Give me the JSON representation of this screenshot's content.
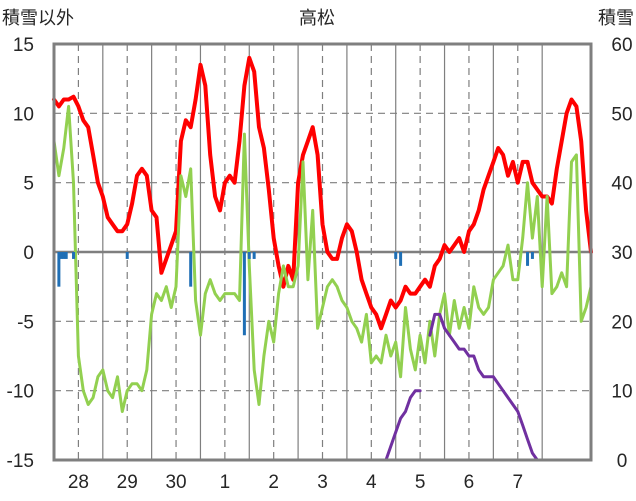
{
  "chart_data": {
    "type": "line",
    "title": "高松",
    "ylabel_left": "積雪以外",
    "ylabel_right": "積雪",
    "ylim_left": [
      -15,
      15
    ],
    "yticks_left": [
      15,
      10,
      5,
      0,
      -5,
      -10,
      -15
    ],
    "ylim_right": [
      0,
      60
    ],
    "yticks_right": [
      60,
      50,
      40,
      30,
      20,
      10,
      0
    ],
    "x_range": [
      27.5,
      38.5
    ],
    "x_ticks": [
      28,
      29,
      30,
      31,
      32,
      33,
      34,
      35,
      36,
      37
    ],
    "x_tick_labels": [
      "28",
      "29",
      "30",
      "1",
      "2",
      "3",
      "4",
      "5",
      "6",
      "7"
    ],
    "grid": true,
    "colors": {
      "temperature": "#ff0000",
      "second_series": "#92d050",
      "precipitation": "#1f6fb5",
      "snow_depth": "#7030a0",
      "frame": "#7f7f7f",
      "grid": "#7f7f7f"
    },
    "series": [
      {
        "key": "temperature",
        "axis": "left",
        "points": [
          [
            27.5,
            11.0
          ],
          [
            27.6,
            10.5
          ],
          [
            27.7,
            11.0
          ],
          [
            27.8,
            11.0
          ],
          [
            27.9,
            11.2
          ],
          [
            28.0,
            10.5
          ],
          [
            28.1,
            9.5
          ],
          [
            28.2,
            9.0
          ],
          [
            28.3,
            7.0
          ],
          [
            28.4,
            5.0
          ],
          [
            28.5,
            4.0
          ],
          [
            28.6,
            2.5
          ],
          [
            28.7,
            2.0
          ],
          [
            28.8,
            1.5
          ],
          [
            28.9,
            1.5
          ],
          [
            29.0,
            2.0
          ],
          [
            29.1,
            3.5
          ],
          [
            29.2,
            5.5
          ],
          [
            29.3,
            6.0
          ],
          [
            29.4,
            5.5
          ],
          [
            29.5,
            3.0
          ],
          [
            29.6,
            2.5
          ],
          [
            29.7,
            -1.5
          ],
          [
            29.8,
            -0.5
          ],
          [
            29.9,
            0.5
          ],
          [
            30.0,
            1.5
          ],
          [
            30.1,
            8.0
          ],
          [
            30.2,
            9.5
          ],
          [
            30.3,
            9.0
          ],
          [
            30.4,
            11.0
          ],
          [
            30.5,
            13.5
          ],
          [
            30.6,
            12.0
          ],
          [
            30.7,
            7.0
          ],
          [
            30.8,
            4.0
          ],
          [
            30.9,
            3.0
          ],
          [
            31.0,
            5.0
          ],
          [
            31.1,
            5.5
          ],
          [
            31.2,
            5.0
          ],
          [
            31.3,
            8.0
          ],
          [
            31.4,
            12.0
          ],
          [
            31.5,
            14.0
          ],
          [
            31.6,
            13.0
          ],
          [
            31.7,
            9.0
          ],
          [
            31.8,
            7.5
          ],
          [
            31.9,
            4.5
          ],
          [
            32.0,
            1.0
          ],
          [
            32.1,
            -1.0
          ],
          [
            32.2,
            -2.5
          ],
          [
            32.3,
            -1.0
          ],
          [
            32.4,
            -2.0
          ],
          [
            32.5,
            5.0
          ],
          [
            32.6,
            7.0
          ],
          [
            32.7,
            8.0
          ],
          [
            32.8,
            9.0
          ],
          [
            32.9,
            7.0
          ],
          [
            33.0,
            2.0
          ],
          [
            33.1,
            0.0
          ],
          [
            33.2,
            -0.5
          ],
          [
            33.3,
            -0.5
          ],
          [
            33.4,
            1.0
          ],
          [
            33.5,
            2.0
          ],
          [
            33.6,
            1.5
          ],
          [
            33.7,
            0.0
          ],
          [
            33.8,
            -2.0
          ],
          [
            33.9,
            -3.0
          ],
          [
            34.0,
            -4.0
          ],
          [
            34.1,
            -4.5
          ],
          [
            34.2,
            -5.5
          ],
          [
            34.3,
            -4.5
          ],
          [
            34.4,
            -3.5
          ],
          [
            34.5,
            -4.0
          ],
          [
            34.6,
            -3.5
          ],
          [
            34.7,
            -2.5
          ],
          [
            34.8,
            -3.0
          ],
          [
            34.9,
            -3.0
          ],
          [
            35.0,
            -2.5
          ],
          [
            35.1,
            -2.0
          ],
          [
            35.2,
            -2.5
          ],
          [
            35.3,
            -1.0
          ],
          [
            35.4,
            -0.5
          ],
          [
            35.5,
            0.5
          ],
          [
            35.6,
            0.0
          ],
          [
            35.7,
            0.5
          ],
          [
            35.8,
            1.0
          ],
          [
            35.9,
            0.0
          ],
          [
            36.0,
            1.5
          ],
          [
            36.1,
            2.0
          ],
          [
            36.2,
            3.0
          ],
          [
            36.3,
            4.5
          ],
          [
            36.4,
            5.5
          ],
          [
            36.5,
            6.5
          ],
          [
            36.6,
            7.5
          ],
          [
            36.7,
            7.0
          ],
          [
            36.8,
            5.5
          ],
          [
            36.9,
            6.5
          ],
          [
            37.0,
            5.0
          ],
          [
            37.1,
            6.5
          ],
          [
            37.2,
            6.5
          ],
          [
            37.3,
            5.0
          ],
          [
            37.4,
            4.5
          ],
          [
            37.5,
            4.0
          ],
          [
            37.6,
            4.0
          ],
          [
            37.7,
            3.5
          ],
          [
            37.8,
            6.0
          ],
          [
            37.9,
            8.0
          ],
          [
            38.0,
            10.0
          ],
          [
            38.1,
            11.0
          ],
          [
            38.2,
            10.5
          ],
          [
            38.3,
            8.0
          ],
          [
            38.4,
            3.0
          ],
          [
            38.5,
            0.0
          ]
        ]
      },
      {
        "key": "second_series",
        "axis": "left",
        "points": [
          [
            27.5,
            8.0
          ],
          [
            27.6,
            5.5
          ],
          [
            27.7,
            7.5
          ],
          [
            27.8,
            10.5
          ],
          [
            27.9,
            5.0
          ],
          [
            28.0,
            -7.5
          ],
          [
            28.1,
            -10.0
          ],
          [
            28.2,
            -11.0
          ],
          [
            28.3,
            -10.5
          ],
          [
            28.4,
            -9.0
          ],
          [
            28.5,
            -8.5
          ],
          [
            28.6,
            -10.0
          ],
          [
            28.7,
            -10.5
          ],
          [
            28.8,
            -9.0
          ],
          [
            28.9,
            -11.5
          ],
          [
            29.0,
            -10.0
          ],
          [
            29.1,
            -9.5
          ],
          [
            29.2,
            -9.5
          ],
          [
            29.3,
            -10.0
          ],
          [
            29.4,
            -8.5
          ],
          [
            29.5,
            -4.5
          ],
          [
            29.6,
            -3.0
          ],
          [
            29.7,
            -3.5
          ],
          [
            29.8,
            -2.5
          ],
          [
            29.9,
            -4.0
          ],
          [
            30.0,
            -2.5
          ],
          [
            30.1,
            5.5
          ],
          [
            30.2,
            4.0
          ],
          [
            30.3,
            6.0
          ],
          [
            30.4,
            -3.5
          ],
          [
            30.5,
            -6.0
          ],
          [
            30.6,
            -3.0
          ],
          [
            30.7,
            -2.0
          ],
          [
            30.8,
            -3.0
          ],
          [
            30.9,
            -3.5
          ],
          [
            31.0,
            -3.0
          ],
          [
            31.1,
            -3.0
          ],
          [
            31.2,
            -3.0
          ],
          [
            31.3,
            -3.5
          ],
          [
            31.4,
            8.5
          ],
          [
            31.5,
            -1.0
          ],
          [
            31.6,
            -8.5
          ],
          [
            31.7,
            -11.0
          ],
          [
            31.8,
            -7.5
          ],
          [
            31.9,
            -5.0
          ],
          [
            32.0,
            -6.5
          ],
          [
            32.1,
            -3.0
          ],
          [
            32.2,
            -1.0
          ],
          [
            32.3,
            -2.5
          ],
          [
            32.4,
            -2.5
          ],
          [
            32.5,
            -1.0
          ],
          [
            32.6,
            6.5
          ],
          [
            32.7,
            -2.0
          ],
          [
            32.8,
            3.0
          ],
          [
            32.9,
            -5.5
          ],
          [
            33.0,
            -4.0
          ],
          [
            33.1,
            -2.5
          ],
          [
            33.2,
            -2.0
          ],
          [
            33.3,
            -2.5
          ],
          [
            33.4,
            -3.5
          ],
          [
            33.5,
            -4.0
          ],
          [
            33.6,
            -5.0
          ],
          [
            33.7,
            -5.5
          ],
          [
            33.8,
            -6.5
          ],
          [
            33.9,
            -4.5
          ],
          [
            34.0,
            -8.0
          ],
          [
            34.1,
            -7.5
          ],
          [
            34.2,
            -8.0
          ],
          [
            34.3,
            -6.0
          ],
          [
            34.4,
            -7.5
          ],
          [
            34.5,
            -6.5
          ],
          [
            34.6,
            -9.0
          ],
          [
            34.7,
            -4.0
          ],
          [
            34.8,
            -7.0
          ],
          [
            34.9,
            -8.5
          ],
          [
            35.0,
            -6.0
          ],
          [
            35.1,
            -8.0
          ],
          [
            35.2,
            -5.0
          ],
          [
            35.3,
            -7.5
          ],
          [
            35.4,
            -4.5
          ],
          [
            35.5,
            -3.0
          ],
          [
            35.6,
            -6.0
          ],
          [
            35.7,
            -3.5
          ],
          [
            35.8,
            -5.5
          ],
          [
            35.9,
            -4.0
          ],
          [
            36.0,
            -5.5
          ],
          [
            36.1,
            -2.5
          ],
          [
            36.2,
            -4.0
          ],
          [
            36.3,
            -4.5
          ],
          [
            36.4,
            -4.0
          ],
          [
            36.5,
            -2.0
          ],
          [
            36.6,
            -1.5
          ],
          [
            36.7,
            -1.0
          ],
          [
            36.8,
            0.5
          ],
          [
            36.9,
            -2.0
          ],
          [
            37.0,
            -2.0
          ],
          [
            37.1,
            1.0
          ],
          [
            37.2,
            5.0
          ],
          [
            37.3,
            1.0
          ],
          [
            37.4,
            4.0
          ],
          [
            37.5,
            -2.5
          ],
          [
            37.6,
            4.0
          ],
          [
            37.7,
            -3.0
          ],
          [
            37.8,
            -2.5
          ],
          [
            37.9,
            -1.5
          ],
          [
            38.0,
            -2.5
          ],
          [
            38.1,
            6.5
          ],
          [
            38.2,
            7.0
          ],
          [
            38.3,
            -5.0
          ],
          [
            38.4,
            -4.0
          ],
          [
            38.5,
            -2.5
          ]
        ]
      },
      {
        "key": "snow_depth",
        "axis": "right",
        "points": [
          [
            27.5,
            0
          ],
          [
            34.3,
            0
          ],
          [
            34.5,
            4
          ],
          [
            34.6,
            6
          ],
          [
            34.7,
            7
          ],
          [
            34.8,
            9
          ],
          [
            34.9,
            10
          ],
          [
            35.0,
            10
          ],
          [
            35.0,
            null
          ],
          [
            35.2,
            18
          ],
          [
            35.3,
            21
          ],
          [
            35.4,
            21
          ],
          [
            35.5,
            19
          ],
          [
            35.6,
            18
          ],
          [
            35.7,
            17
          ],
          [
            35.8,
            16
          ],
          [
            35.9,
            16
          ],
          [
            36.0,
            15
          ],
          [
            36.1,
            15
          ],
          [
            36.2,
            13
          ],
          [
            36.3,
            12
          ],
          [
            36.4,
            12
          ],
          [
            36.5,
            12
          ],
          [
            36.6,
            11
          ],
          [
            36.7,
            10
          ],
          [
            36.8,
            9
          ],
          [
            37.0,
            7
          ],
          [
            37.1,
            5
          ],
          [
            37.2,
            3
          ],
          [
            37.3,
            1
          ],
          [
            37.4,
            0
          ],
          [
            38.5,
            0
          ]
        ]
      },
      {
        "key": "precipitation",
        "axis": "left",
        "type": "bar",
        "points": [
          [
            27.6,
            -2.5
          ],
          [
            27.65,
            -0.5
          ],
          [
            27.7,
            -0.5
          ],
          [
            27.75,
            -0.5
          ],
          [
            27.9,
            -0.5
          ],
          [
            29.0,
            -0.5
          ],
          [
            30.3,
            -2.5
          ],
          [
            31.4,
            -6.0
          ],
          [
            31.5,
            -0.5
          ],
          [
            31.6,
            -0.5
          ],
          [
            34.5,
            -0.5
          ],
          [
            34.6,
            -1.0
          ],
          [
            37.2,
            -1.0
          ],
          [
            37.3,
            -0.5
          ]
        ]
      }
    ]
  }
}
